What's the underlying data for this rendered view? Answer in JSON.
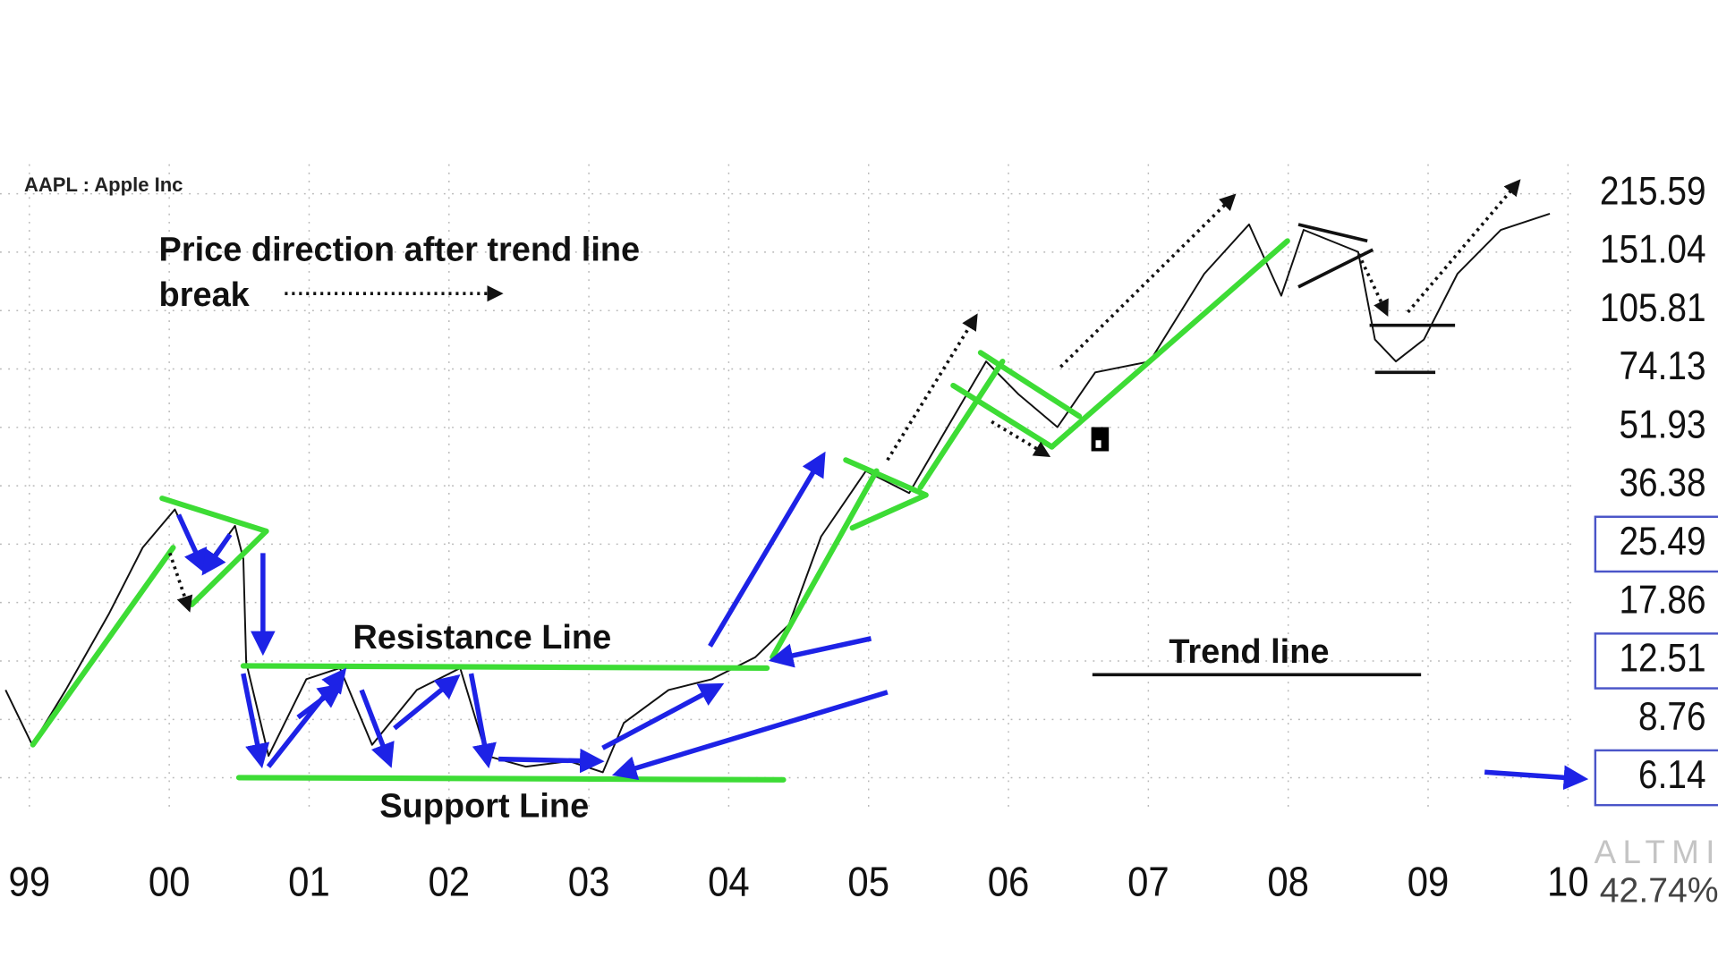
{
  "chart_data": {
    "type": "line",
    "title": "AAPL : Apple Inc",
    "annotations": {
      "note": [
        "Price direction after trend line",
        "break"
      ],
      "resistance": "Resistance Line",
      "support": "Support Line",
      "trend": "Trend line"
    },
    "indicator": {
      "name": "ALTMI",
      "value": 42.74,
      "value_label": "42.74%"
    },
    "color": "#111111",
    "log_scale": true,
    "grid": true,
    "x": [
      98.83,
      99.02,
      99.26,
      99.57,
      99.81,
      100.04,
      100.24,
      100.47,
      100.53,
      100.55,
      100.71,
      100.98,
      101.22,
      101.45,
      101.77,
      102.08,
      102.27,
      102.55,
      102.86,
      103.1,
      103.25,
      103.57,
      103.88,
      104.19,
      104.43,
      104.66,
      104.98,
      105.29,
      105.52,
      105.84,
      106.07,
      106.35,
      106.62,
      107.01,
      107.4,
      107.72,
      107.95,
      108.11,
      108.5,
      108.62,
      108.77,
      108.97,
      109.21,
      109.52,
      109.87
    ],
    "values": [
      10.48,
      7.5,
      10.48,
      16.71,
      24.95,
      31.5,
      21.8,
      28.5,
      23.3,
      12.4,
      7.02,
      11.2,
      11.98,
      7.5,
      10.48,
      11.98,
      7.02,
      6.57,
      6.79,
      6.35,
      8.58,
      10.48,
      11.2,
      12.8,
      15.6,
      26.7,
      39.8,
      34.8,
      48.7,
      77.6,
      63.6,
      52.0,
      72.6,
      77.6,
      132.4,
      178.8,
      115.8,
      173,
      151.3,
      88.7,
      77.6,
      88.7,
      132.4,
      173,
      191
    ],
    "xlim": [
      98.79,
      110.07
    ],
    "xticks": [
      99,
      {
        "value": 100,
        "label": "00"
      },
      {
        "value": 101,
        "label": "01"
      },
      {
        "value": 102,
        "label": "02"
      },
      {
        "value": 103,
        "label": "03"
      },
      {
        "value": 104,
        "label": "04"
      },
      {
        "value": 105,
        "label": "05"
      },
      {
        "value": 106,
        "label": "06"
      },
      {
        "value": 107,
        "label": "07"
      },
      {
        "value": 108,
        "label": "08"
      },
      {
        "value": 109,
        "label": "09"
      },
      {
        "value": 110,
        "label": "10"
      }
    ],
    "ylim": [
      5.03,
      258
    ],
    "yticks": [
      6.14,
      8.76,
      12.51,
      17.86,
      25.49,
      36.38,
      51.93,
      74.13,
      105.81,
      151.04,
      215.59
    ],
    "highlighted_yticks": [
      6.14,
      12.51,
      25.49
    ]
  }
}
